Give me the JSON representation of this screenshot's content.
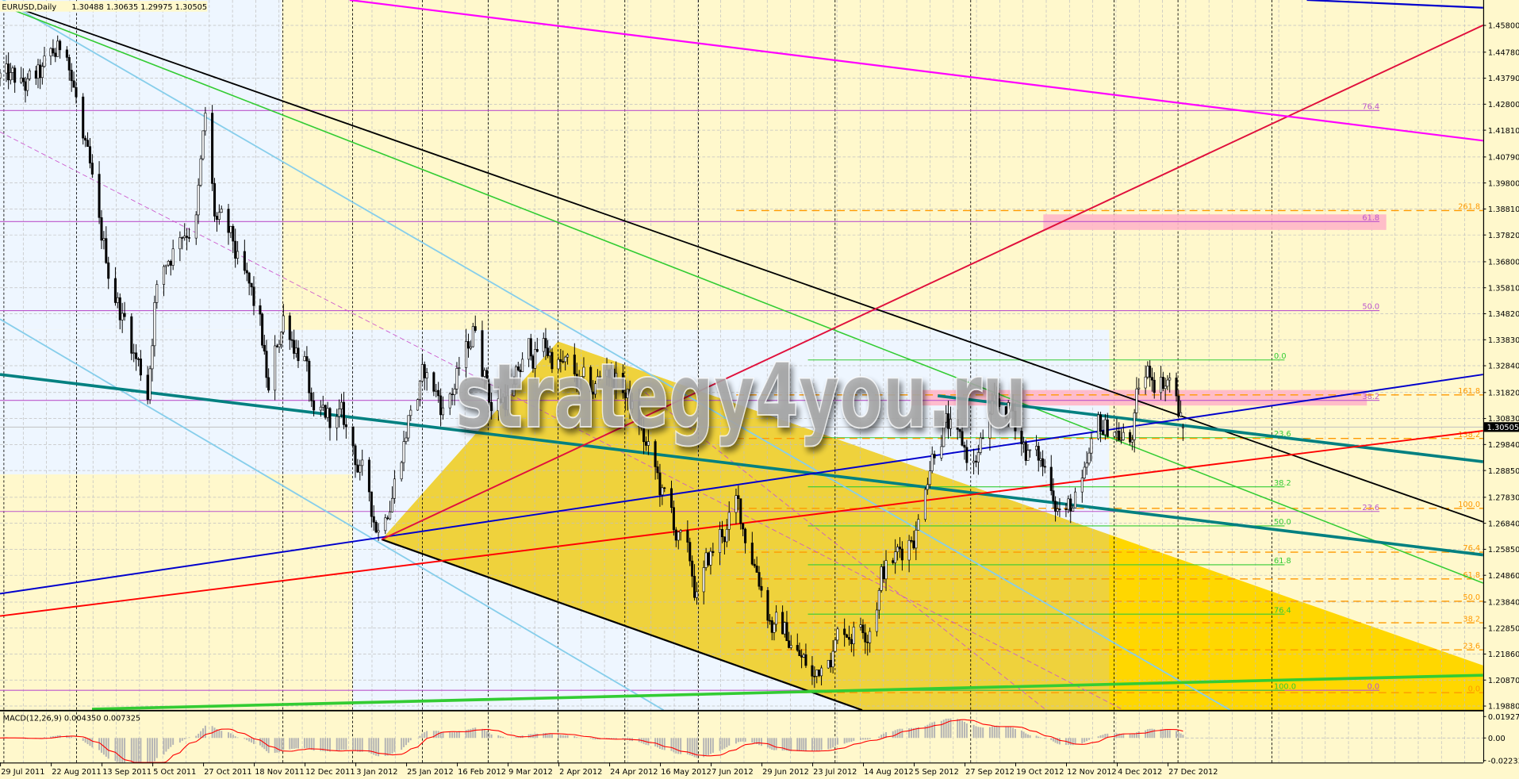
{
  "header": {
    "symbol_timeframe": "EURUSD,Daily",
    "ohlc": "1.30488 1.30635 1.29975 1.30505"
  },
  "watermark": "strategy4you.ru",
  "colors": {
    "background": "#fff8cc",
    "background_alt": "#eef6ff",
    "triangle_fill": "#ffd700",
    "grid": "#c0c0c0",
    "bull_body": "#ffffff",
    "bear_body": "#000000",
    "macd_histogram": "#b4b4b4",
    "macd_signal": "#ff0000",
    "fib_purple": "#bb55cc",
    "fib_green": "#33cc33",
    "fib_orange": "#ff9900"
  },
  "chart_data": [
    {
      "type": "candlestick",
      "symbol": "EURUSD",
      "timeframe": "Daily",
      "last_candle": {
        "open": 1.30488,
        "high": 1.30635,
        "low": 1.29975,
        "close": 1.30505
      },
      "current_price_label": "1.30505",
      "y_ticks": [
        "1.45800",
        "1.44780",
        "1.43790",
        "1.42800",
        "1.41810",
        "1.40790",
        "1.39800",
        "1.38810",
        "1.37820",
        "1.36800",
        "1.35810",
        "1.34820",
        "1.33830",
        "1.32840",
        "1.31820",
        "1.30830",
        "1.29840",
        "1.28850",
        "1.27830",
        "1.26840",
        "1.25850",
        "1.24860",
        "1.23840",
        "1.22850",
        "1.21860",
        "1.20870",
        "1.19880"
      ],
      "ylim": [
        1.1988,
        1.458
      ],
      "x_ticks": [
        {
          "label": "29 Jul 2011",
          "date": "2011-07-29"
        },
        {
          "label": "22 Aug 2011",
          "date": "2011-08-22"
        },
        {
          "label": "13 Sep 2011",
          "date": "2011-09-13"
        },
        {
          "label": "5 Oct 2011",
          "date": "2011-10-05"
        },
        {
          "label": "27 Oct 2011",
          "date": "2011-10-27"
        },
        {
          "label": "18 Nov 2011",
          "date": "2011-11-18"
        },
        {
          "label": "12 Dec 2011",
          "date": "2011-12-12"
        },
        {
          "label": "3 Jan 2012",
          "date": "2012-01-03"
        },
        {
          "label": "25 Jan 2012",
          "date": "2012-01-25"
        },
        {
          "label": "16 Feb 2012",
          "date": "2012-02-16"
        },
        {
          "label": "9 Mar 2012",
          "date": "2012-03-09"
        },
        {
          "label": "2 Apr 2012",
          "date": "2012-04-02"
        },
        {
          "label": "24 Apr 2012",
          "date": "2012-04-24"
        },
        {
          "label": "16 May 2012",
          "date": "2012-05-16"
        },
        {
          "label": "7 Jun 2012",
          "date": "2012-06-07"
        },
        {
          "label": "29 Jun 2012",
          "date": "2012-06-29"
        },
        {
          "label": "23 Jul 2012",
          "date": "2012-07-23"
        },
        {
          "label": "14 Aug 2012",
          "date": "2012-08-14"
        },
        {
          "label": "5 Sep 2012",
          "date": "2012-09-05"
        },
        {
          "label": "27 Sep 2012",
          "date": "2012-09-27"
        },
        {
          "label": "19 Oct 2012",
          "date": "2012-10-19"
        },
        {
          "label": "12 Nov 2012",
          "date": "2012-11-12"
        },
        {
          "label": "4 Dec 2012",
          "date": "2012-12-04"
        },
        {
          "label": "27 Dec 2012",
          "date": "2012-12-27"
        }
      ],
      "price_path": [
        [
          "2011-07-29",
          1.438
        ],
        [
          "2011-08-08",
          1.431
        ],
        [
          "2011-08-17",
          1.434
        ],
        [
          "2011-08-29",
          1.449
        ],
        [
          "2011-09-02",
          1.431
        ],
        [
          "2011-09-12",
          1.372
        ],
        [
          "2011-09-23",
          1.346
        ],
        [
          "2011-10-03",
          1.32
        ],
        [
          "2011-10-06",
          1.357
        ],
        [
          "2011-10-17",
          1.383
        ],
        [
          "2011-10-24",
          1.39
        ],
        [
          "2011-10-28",
          1.421
        ],
        [
          "2011-11-01",
          1.383
        ],
        [
          "2011-11-09",
          1.368
        ],
        [
          "2011-11-21",
          1.338
        ],
        [
          "2011-11-25",
          1.313
        ],
        [
          "2011-12-02",
          1.346
        ],
        [
          "2011-12-12",
          1.335
        ],
        [
          "2011-12-16",
          1.302
        ],
        [
          "2011-12-27",
          1.305
        ],
        [
          "2012-01-04",
          1.29
        ],
        [
          "2012-01-10",
          1.272
        ],
        [
          "2012-01-13",
          1.268
        ],
        [
          "2012-01-20",
          1.29
        ],
        [
          "2012-01-27",
          1.316
        ],
        [
          "2012-02-02",
          1.324
        ],
        [
          "2012-02-10",
          1.313
        ],
        [
          "2012-02-20",
          1.331
        ],
        [
          "2012-02-24",
          1.344
        ],
        [
          "2012-03-02",
          1.316
        ],
        [
          "2012-03-12",
          1.32
        ],
        [
          "2012-03-19",
          1.331
        ],
        [
          "2012-03-26",
          1.335
        ],
        [
          "2012-04-02",
          1.331
        ],
        [
          "2012-04-09",
          1.32
        ],
        [
          "2012-04-16",
          1.313
        ],
        [
          "2012-04-23",
          1.327
        ],
        [
          "2012-04-30",
          1.32
        ],
        [
          "2012-05-07",
          1.305
        ],
        [
          "2012-05-16",
          1.279
        ],
        [
          "2012-05-24",
          1.261
        ],
        [
          "2012-06-01",
          1.239
        ],
        [
          "2012-06-11",
          1.261
        ],
        [
          "2012-06-18",
          1.272
        ],
        [
          "2012-06-27",
          1.254
        ],
        [
          "2012-07-05",
          1.231
        ],
        [
          "2012-07-13",
          1.224
        ],
        [
          "2012-07-24",
          1.207
        ],
        [
          "2012-07-30",
          1.224
        ],
        [
          "2012-08-07",
          1.231
        ],
        [
          "2012-08-16",
          1.235
        ],
        [
          "2012-08-22",
          1.254
        ],
        [
          "2012-08-30",
          1.257
        ],
        [
          "2012-09-07",
          1.272
        ],
        [
          "2012-09-12",
          1.298
        ],
        [
          "2012-09-18",
          1.313
        ],
        [
          "2012-09-25",
          1.294
        ],
        [
          "2012-10-01",
          1.29
        ],
        [
          "2012-10-08",
          1.305
        ],
        [
          "2012-10-17",
          1.309
        ],
        [
          "2012-10-24",
          1.298
        ],
        [
          "2012-11-06",
          1.283
        ],
        [
          "2012-11-12",
          1.274
        ],
        [
          "2012-11-20",
          1.279
        ],
        [
          "2012-11-26",
          1.298
        ],
        [
          "2012-12-03",
          1.305
        ],
        [
          "2012-12-10",
          1.298
        ],
        [
          "2012-12-14",
          1.316
        ],
        [
          "2012-12-20",
          1.325
        ],
        [
          "2012-12-28",
          1.327
        ],
        [
          "2013-01-03",
          1.305
        ]
      ],
      "fib_purple": [
        {
          "label": "76.4",
          "price": 1.4256
        },
        {
          "label": "61.8",
          "price": 1.3833
        },
        {
          "label": "50.0",
          "price": 1.3494
        },
        {
          "label": "38.2",
          "price": 1.3152
        },
        {
          "label": "23.6",
          "price": 1.2729
        },
        {
          "label": "0.0",
          "price": 1.2048
        }
      ],
      "fib_green": [
        {
          "label": "0.0",
          "price": 1.3306
        },
        {
          "label": "23.6",
          "price": 1.301
        },
        {
          "label": "38.2",
          "price": 1.2823
        },
        {
          "label": "50.0",
          "price": 1.2674
        },
        {
          "label": "61.8",
          "price": 1.2526
        },
        {
          "label": "76.4",
          "price": 1.2338
        },
        {
          "label": "100.0",
          "price": 1.2048
        }
      ],
      "fib_orange": [
        {
          "label": "261.8",
          "price": 1.3875
        },
        {
          "label": "161.8",
          "price": 1.3173
        },
        {
          "label": "138.2",
          "price": 1.3007
        },
        {
          "label": "100.0",
          "price": 1.2741
        },
        {
          "label": "76.4",
          "price": 1.2574
        },
        {
          "label": "61.8",
          "price": 1.2472
        },
        {
          "label": "50.0",
          "price": 1.2387
        },
        {
          "label": "38.2",
          "price": 1.2305
        },
        {
          "label": "23.6",
          "price": 1.2202
        },
        {
          "label": "0.0",
          "price": 1.2039
        }
      ]
    },
    {
      "type": "histogram",
      "indicator": "MACD",
      "label": "MACD(12,26,9) 0.004350 0.007325",
      "params": [
        12,
        26,
        9
      ],
      "main_value": 0.00435,
      "signal_value": 0.007325,
      "y_ticks": [
        "0.019277",
        "0.00",
        "-0.022336"
      ],
      "ylim": [
        -0.022336,
        0.019277
      ]
    }
  ]
}
